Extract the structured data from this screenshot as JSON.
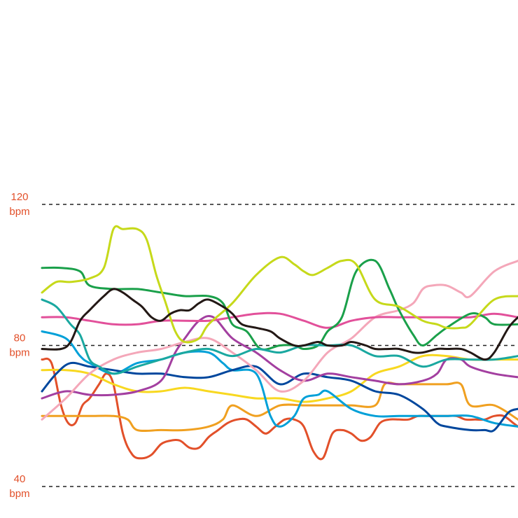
{
  "chart_data": {
    "type": "line",
    "ylim": [
      40,
      120
    ],
    "xlim": [
      0,
      100
    ],
    "grid": "dashed horizontal at labeled ticks",
    "y_ticks": [
      {
        "value": 120,
        "number": "120",
        "unit": "bpm"
      },
      {
        "value": 80,
        "number": "80",
        "unit": "bpm"
      },
      {
        "value": 40,
        "number": "40",
        "unit": "bpm"
      }
    ],
    "series": [
      {
        "color": "#e2502a",
        "x": [
          0,
          2,
          4,
          5.5,
          7,
          8.5,
          10,
          12,
          13.5,
          15,
          17,
          19,
          21,
          23,
          25,
          27,
          29,
          31,
          33,
          35,
          37,
          39,
          41,
          43,
          45,
          47,
          49,
          51,
          53,
          55,
          57,
          59,
          61,
          63,
          65,
          67,
          69,
          71,
          73,
          75,
          77,
          79,
          81,
          83,
          85,
          87,
          89,
          91,
          93,
          95,
          97,
          99,
          100
        ],
        "y": [
          76,
          75,
          63,
          58,
          58,
          63,
          65,
          69,
          72,
          69,
          55,
          49,
          48,
          49,
          52,
          53,
          53,
          51,
          51,
          54,
          56,
          58,
          59,
          59,
          57,
          55,
          57,
          59,
          59,
          57,
          50,
          48,
          55,
          56,
          55,
          53,
          54,
          58,
          59,
          59,
          59,
          60,
          60,
          60,
          60,
          60,
          59,
          59,
          59,
          60,
          60,
          58,
          57
        ]
      },
      {
        "color": "#f0a020",
        "x": [
          0,
          5,
          10,
          15,
          18,
          20,
          25,
          30,
          35,
          38,
          40,
          45,
          50,
          55,
          58,
          60,
          65,
          70,
          72,
          75,
          80,
          85,
          88,
          90,
          95,
          100
        ],
        "y": [
          60,
          60,
          60,
          60,
          59,
          56,
          56,
          56,
          57,
          59,
          63,
          60,
          63,
          63,
          63,
          63,
          63,
          63,
          69,
          69,
          69,
          69,
          69,
          63,
          63,
          59
        ]
      },
      {
        "color": "#f8d820",
        "x": [
          0,
          5,
          10,
          15,
          20,
          25,
          30,
          35,
          40,
          45,
          50,
          55,
          60,
          65,
          70,
          75,
          80,
          85,
          90,
          95,
          100
        ],
        "y": [
          73,
          73,
          72,
          69,
          67,
          67,
          68,
          67,
          66,
          65,
          65,
          64,
          65,
          67,
          72,
          74,
          77,
          77,
          76,
          76,
          76
        ]
      },
      {
        "color": "#00a0d8",
        "x": [
          0,
          5,
          8,
          10,
          15,
          20,
          25,
          30,
          35,
          38,
          40,
          45,
          48,
          50,
          53,
          55,
          58,
          60,
          65,
          70,
          75,
          80,
          85,
          90,
          95,
          100
        ],
        "y": [
          84,
          82,
          77,
          75,
          72,
          75,
          76,
          78,
          78,
          75,
          73,
          72,
          60,
          57,
          60,
          65,
          66,
          67,
          62,
          60,
          60,
          60,
          60,
          60,
          58,
          57
        ]
      },
      {
        "color": "#00479d",
        "x": [
          0,
          3,
          6,
          10,
          15,
          20,
          25,
          30,
          35,
          40,
          45,
          50,
          55,
          60,
          65,
          70,
          75,
          80,
          83,
          85,
          90,
          93,
          95,
          98,
          100
        ],
        "y": [
          67,
          72,
          75,
          74,
          73,
          72,
          72,
          71,
          71,
          73,
          74,
          69,
          72,
          71,
          70,
          67,
          66,
          62,
          58,
          57,
          56,
          56,
          56,
          61,
          62
        ]
      },
      {
        "color": "#a33fa0",
        "x": [
          0,
          5,
          10,
          15,
          20,
          25,
          28,
          30,
          33,
          36,
          40,
          45,
          50,
          55,
          60,
          65,
          70,
          75,
          80,
          83,
          85,
          88,
          90,
          95,
          100
        ],
        "y": [
          65,
          67,
          66,
          66,
          67,
          70,
          78,
          82,
          87,
          88,
          82,
          78,
          73,
          70,
          72,
          71,
          70,
          69,
          70,
          72,
          76,
          76,
          74,
          72,
          71
        ]
      },
      {
        "color": "#f4a7b9",
        "x": [
          0,
          5,
          10,
          15,
          20,
          25,
          30,
          35,
          40,
          45,
          50,
          55,
          60,
          65,
          70,
          75,
          78,
          80,
          82,
          85,
          88,
          90,
          95,
          100
        ],
        "y": [
          59,
          65,
          72,
          76,
          78,
          79,
          81,
          82,
          78,
          73,
          67,
          70,
          78,
          82,
          88,
          90,
          92,
          96,
          97,
          97,
          95,
          94,
          101,
          104
        ]
      },
      {
        "color": "#e2509a",
        "x": [
          0,
          5,
          10,
          15,
          20,
          25,
          30,
          35,
          40,
          45,
          50,
          55,
          60,
          65,
          70,
          75,
          80,
          85,
          90,
          95,
          100
        ],
        "y": [
          88,
          88,
          87,
          86,
          86,
          87,
          87,
          87,
          88,
          89,
          89,
          87,
          85,
          87,
          88,
          88,
          88,
          88,
          88,
          89,
          88
        ]
      },
      {
        "color": "#1aa04a",
        "x": [
          0,
          4,
          8,
          10,
          15,
          20,
          25,
          30,
          35,
          38,
          40,
          43,
          46,
          50,
          53,
          55,
          58,
          60,
          63,
          66,
          70,
          73,
          75,
          78,
          80,
          83,
          85,
          90,
          93,
          95,
          100
        ],
        "y": [
          102,
          102,
          101,
          97,
          96,
          96,
          95,
          94,
          94,
          92,
          86,
          84,
          79,
          80,
          80,
          79,
          80,
          84,
          88,
          101,
          104,
          96,
          90,
          83,
          80,
          83,
          85,
          89,
          88,
          86,
          86
        ]
      },
      {
        "color": "#1aa8a0",
        "x": [
          0,
          3,
          6,
          8,
          10,
          12,
          15,
          18,
          20,
          25,
          30,
          35,
          40,
          45,
          50,
          55,
          60,
          65,
          70,
          75,
          80,
          85,
          90,
          95,
          100
        ],
        "y": [
          93,
          91,
          86,
          83,
          76,
          74,
          72,
          73,
          74,
          76,
          78,
          79,
          77,
          79,
          78,
          80,
          80,
          80,
          77,
          77,
          74,
          76,
          76,
          76,
          77
        ]
      },
      {
        "color": "#c6d91a",
        "x": [
          0,
          3,
          6,
          10,
          13,
          15,
          17,
          20,
          22,
          24,
          26,
          28,
          30,
          33,
          35,
          40,
          45,
          50,
          53,
          55,
          57,
          60,
          63,
          66,
          70,
          75,
          80,
          83,
          85,
          88,
          90,
          95,
          100
        ],
        "y": [
          95,
          98,
          98,
          99,
          102,
          113,
          113,
          113,
          110,
          100,
          92,
          84,
          81,
          82,
          86,
          92,
          100,
          105,
          103,
          101,
          100,
          102,
          104,
          103,
          93,
          91,
          87,
          86,
          85,
          85,
          86,
          93,
          94
        ]
      },
      {
        "color": "#231815",
        "x": [
          0,
          4,
          6,
          8,
          10,
          13,
          15,
          17,
          19,
          21,
          23,
          25,
          27,
          29,
          31,
          33,
          35,
          38,
          40,
          42,
          45,
          48,
          50,
          53,
          55,
          58,
          60,
          63,
          65,
          68,
          70,
          73,
          75,
          78,
          80,
          83,
          85,
          88,
          90,
          93,
          95,
          98,
          100
        ],
        "y": [
          79,
          79,
          81,
          87,
          90,
          94,
          96,
          95,
          93,
          91,
          88,
          87,
          89,
          90,
          90,
          92,
          93,
          91,
          89,
          86,
          85,
          84,
          82,
          80,
          80,
          81,
          80,
          80,
          81,
          80,
          79,
          79,
          79,
          78,
          78,
          79,
          79,
          79,
          78,
          76,
          78,
          85,
          88
        ]
      }
    ]
  }
}
